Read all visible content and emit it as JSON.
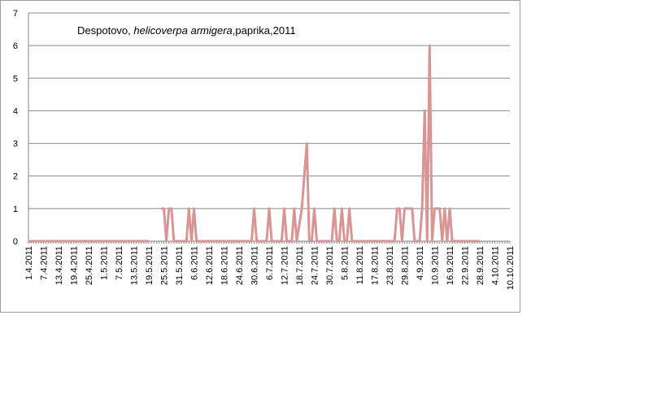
{
  "chart_data": {
    "type": "line",
    "title": {
      "location": "Despotovo, ",
      "species": "helicoverpa armigera",
      "rest": ",paprika,2011"
    },
    "xlabel": "",
    "ylabel": "",
    "ylim": [
      0,
      7
    ],
    "yticks": [
      "0",
      "1",
      "2",
      "3",
      "4",
      "5",
      "6",
      "7"
    ],
    "grid": "horizontal",
    "x_start": "1.4.2011",
    "x_end": "10.10.2011",
    "x_tick_labels": [
      "1.4.2011",
      "7.4.2011",
      "13.4.2011",
      "19.4.2011",
      "25.4.2011",
      "1.5.2011",
      "7.5.2011",
      "13.5.2011",
      "19.5.2011",
      "25.5.2011",
      "31.5.2011",
      "6.6.2011",
      "12.6.2011",
      "18.6.2011",
      "24.6.2011",
      "30.6.2011",
      "6.7.2011",
      "12.7.2011",
      "18.7.2011",
      "24.7.2011",
      "30.7.2011",
      "5.8.2011",
      "11.8.2011",
      "17.8.2011",
      "23.8.2011",
      "29.8.2011",
      "4.9.2011",
      "10.9.2011",
      "16.9.2011",
      "22.9.2011",
      "28.9.2011",
      "4.10.2011",
      "10.10.2011"
    ],
    "series": [
      {
        "name": "",
        "color": "#d99594",
        "points": [
          {
            "x": "1.4.2011",
            "y": 0
          },
          {
            "x": "19.5.2011",
            "y": 0
          },
          {
            "x": "20.5.2011",
            "y": null
          },
          {
            "x": "23.5.2011",
            "y": null
          },
          {
            "x": "24.5.2011",
            "y": 1
          },
          {
            "x": "25.5.2011",
            "y": 1
          },
          {
            "x": "26.5.2011",
            "y": 0
          },
          {
            "x": "27.5.2011",
            "y": 1
          },
          {
            "x": "28.5.2011",
            "y": 1
          },
          {
            "x": "29.5.2011",
            "y": 0
          },
          {
            "x": "3.6.2011",
            "y": 0
          },
          {
            "x": "4.6.2011",
            "y": 1
          },
          {
            "x": "5.6.2011",
            "y": 0
          },
          {
            "x": "6.6.2011",
            "y": 1
          },
          {
            "x": "7.6.2011",
            "y": 0
          },
          {
            "x": "29.6.2011",
            "y": 0
          },
          {
            "x": "30.6.2011",
            "y": 1
          },
          {
            "x": "1.7.2011",
            "y": 0
          },
          {
            "x": "5.7.2011",
            "y": 0
          },
          {
            "x": "6.7.2011",
            "y": 1
          },
          {
            "x": "7.7.2011",
            "y": 0
          },
          {
            "x": "11.7.2011",
            "y": 0
          },
          {
            "x": "12.7.2011",
            "y": 1
          },
          {
            "x": "13.7.2011",
            "y": 0
          },
          {
            "x": "15.7.2011",
            "y": 0
          },
          {
            "x": "16.7.2011",
            "y": 1
          },
          {
            "x": "17.7.2011",
            "y": 0
          },
          {
            "x": "19.7.2011",
            "y": 1
          },
          {
            "x": "20.7.2011",
            "y": 2
          },
          {
            "x": "21.7.2011",
            "y": 3
          },
          {
            "x": "22.7.2011",
            "y": 0
          },
          {
            "x": "23.7.2011",
            "y": 0
          },
          {
            "x": "24.7.2011",
            "y": 1
          },
          {
            "x": "25.7.2011",
            "y": 0
          },
          {
            "x": "31.7.2011",
            "y": 0
          },
          {
            "x": "1.8.2011",
            "y": 1
          },
          {
            "x": "2.8.2011",
            "y": 0
          },
          {
            "x": "3.8.2011",
            "y": 0
          },
          {
            "x": "4.8.2011",
            "y": 1
          },
          {
            "x": "5.8.2011",
            "y": 0
          },
          {
            "x": "6.8.2011",
            "y": 0
          },
          {
            "x": "7.8.2011",
            "y": 1
          },
          {
            "x": "8.8.2011",
            "y": 0
          },
          {
            "x": "25.8.2011",
            "y": 0
          },
          {
            "x": "26.8.2011",
            "y": 1
          },
          {
            "x": "27.8.2011",
            "y": 1
          },
          {
            "x": "28.8.2011",
            "y": 0
          },
          {
            "x": "29.8.2011",
            "y": 1
          },
          {
            "x": "30.8.2011",
            "y": 1
          },
          {
            "x": "31.8.2011",
            "y": 1
          },
          {
            "x": "1.9.2011",
            "y": 1
          },
          {
            "x": "2.9.2011",
            "y": 0
          },
          {
            "x": "3.9.2011",
            "y": 0
          },
          {
            "x": "4.9.2011",
            "y": 0
          },
          {
            "x": "5.9.2011",
            "y": 1
          },
          {
            "x": "6.9.2011",
            "y": 4
          },
          {
            "x": "7.9.2011",
            "y": 0
          },
          {
            "x": "8.9.2011",
            "y": 6
          },
          {
            "x": "9.9.2011",
            "y": 0
          },
          {
            "x": "10.9.2011",
            "y": 1
          },
          {
            "x": "11.9.2011",
            "y": 1
          },
          {
            "x": "12.9.2011",
            "y": 1
          },
          {
            "x": "13.9.2011",
            "y": 0
          },
          {
            "x": "14.9.2011",
            "y": 1
          },
          {
            "x": "15.9.2011",
            "y": 0
          },
          {
            "x": "16.9.2011",
            "y": 1
          },
          {
            "x": "17.9.2011",
            "y": 0
          },
          {
            "x": "28.9.2011",
            "y": 0
          }
        ]
      }
    ]
  }
}
